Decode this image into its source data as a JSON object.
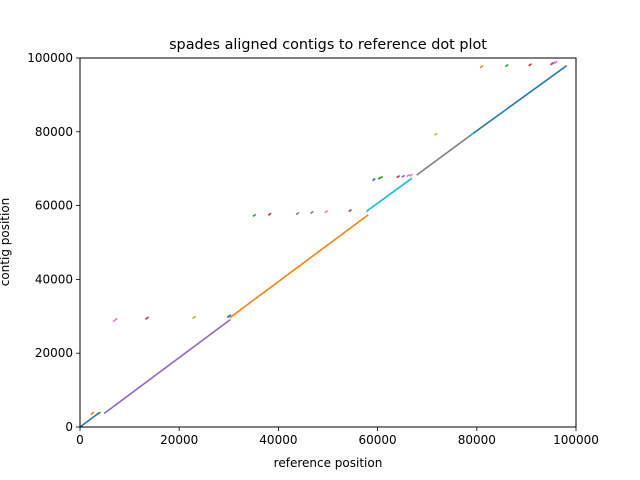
{
  "chart_data": {
    "type": "scatter",
    "title": "spades aligned contigs to reference dot plot",
    "xlabel": "reference position",
    "ylabel": "contig position",
    "xlim": [
      0,
      100000
    ],
    "ylim": [
      0,
      100000
    ],
    "xticks": [
      "0",
      "20000",
      "40000",
      "60000",
      "80000",
      "100000"
    ],
    "yticks": [
      "0",
      "20000",
      "40000",
      "60000",
      "80000",
      "100000"
    ],
    "grid": false,
    "legend": "none",
    "series": [
      {
        "color": "#1f77b4",
        "x": [
          0,
          3800
        ],
        "y": [
          0,
          3800
        ]
      },
      {
        "color": "#ff7f0e",
        "x": [
          2300,
          2700
        ],
        "y": [
          3500,
          3900
        ]
      },
      {
        "color": "#2ca02c",
        "x": [
          3700,
          4000
        ],
        "y": [
          3600,
          3900
        ]
      },
      {
        "color": "#9467bd",
        "x": [
          5000,
          30200
        ],
        "y": [
          3800,
          29000
        ]
      },
      {
        "color": "#e377c2",
        "x": [
          6800,
          7400
        ],
        "y": [
          28700,
          29300
        ]
      },
      {
        "color": "#8c564b",
        "x": [
          13300,
          13700
        ],
        "y": [
          29300,
          29700
        ]
      },
      {
        "color": "#bcbd22",
        "x": [
          22800,
          23200
        ],
        "y": [
          29500,
          29900
        ]
      },
      {
        "color": "#1f77b4",
        "x": [
          29800,
          30300
        ],
        "y": [
          29800,
          30300
        ]
      },
      {
        "color": "#ff7f0e",
        "x": [
          30300,
          58000
        ],
        "y": [
          29700,
          57400
        ]
      },
      {
        "color": "#2ca02c",
        "x": [
          35000,
          35300
        ],
        "y": [
          57200,
          57500
        ]
      },
      {
        "color": "#d62728",
        "x": [
          38100,
          38400
        ],
        "y": [
          57500,
          57800
        ]
      },
      {
        "color": "#7f7f7f",
        "x": [
          43700,
          44000
        ],
        "y": [
          57700,
          58000
        ]
      },
      {
        "color": "#9467bd",
        "x": [
          46600,
          46900
        ],
        "y": [
          58000,
          58300
        ]
      },
      {
        "color": "#e377c2",
        "x": [
          49500,
          49800
        ],
        "y": [
          58200,
          58500
        ]
      },
      {
        "color": "#8c564b",
        "x": [
          54300,
          54600
        ],
        "y": [
          58500,
          58800
        ]
      },
      {
        "color": "#bcbd22",
        "x": [
          57800,
          58100
        ],
        "y": [
          58400,
          58700
        ]
      },
      {
        "color": "#17becf",
        "x": [
          58000,
          66800
        ],
        "y": [
          58700,
          67300
        ]
      },
      {
        "color": "#1f77b4",
        "x": [
          59100,
          59400
        ],
        "y": [
          66900,
          67200
        ]
      },
      {
        "color": "#2ca02c",
        "x": [
          60200,
          60500
        ],
        "y": [
          67300,
          67600
        ]
      },
      {
        "color": "#2ca02c",
        "x": [
          60600,
          60900
        ],
        "y": [
          67500,
          67800
        ]
      },
      {
        "color": "#d62728",
        "x": [
          64000,
          64300
        ],
        "y": [
          67700,
          68000
        ]
      },
      {
        "color": "#9467bd",
        "x": [
          65000,
          65300
        ],
        "y": [
          67800,
          68100
        ]
      },
      {
        "color": "#e377c2",
        "x": [
          66000,
          66300
        ],
        "y": [
          68000,
          68300
        ]
      },
      {
        "color": "#e377c2",
        "x": [
          66600,
          66900
        ],
        "y": [
          68100,
          68400
        ]
      },
      {
        "color": "#7f7f7f",
        "x": [
          68000,
          79000
        ],
        "y": [
          68400,
          79300
        ]
      },
      {
        "color": "#bcbd22",
        "x": [
          71600,
          71900
        ],
        "y": [
          79200,
          79500
        ]
      },
      {
        "color": "#17becf",
        "x": [
          79000,
          79500
        ],
        "y": [
          79300,
          79800
        ]
      },
      {
        "color": "#1f77b4",
        "x": [
          79500,
          98000
        ],
        "y": [
          79800,
          97800
        ]
      },
      {
        "color": "#ff7f0e",
        "x": [
          80800,
          81100
        ],
        "y": [
          97500,
          97800
        ]
      },
      {
        "color": "#2ca02c",
        "x": [
          85900,
          86200
        ],
        "y": [
          97800,
          98100
        ]
      },
      {
        "color": "#d62728",
        "x": [
          90600,
          90900
        ],
        "y": [
          98000,
          98300
        ]
      },
      {
        "color": "#d62728",
        "x": [
          95000,
          95300
        ],
        "y": [
          98300,
          98600
        ]
      },
      {
        "color": "#9467bd",
        "x": [
          95400,
          95700
        ],
        "y": [
          98500,
          98800
        ]
      },
      {
        "color": "#e377c2",
        "x": [
          95800,
          96100
        ],
        "y": [
          98700,
          99000
        ]
      }
    ]
  }
}
